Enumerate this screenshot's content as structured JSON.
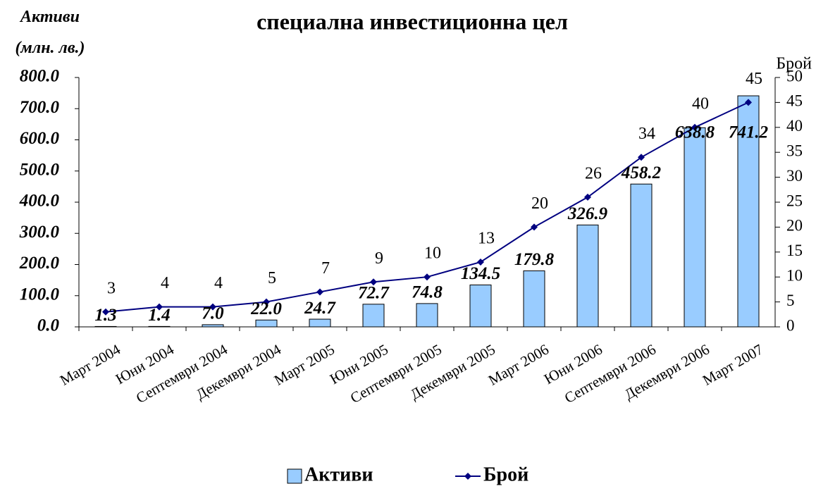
{
  "chart_data": {
    "type": "bar",
    "title": "специална инвестиционна цел",
    "ylabel": "Активи\n(млн. лв.)",
    "y2label": "Брой",
    "categories": [
      "Март 2004",
      "Юни 2004",
      "Септември 2004",
      "Декември 2004",
      "Март 2005",
      "Юни 2005",
      "Септември 2005",
      "Декември 2005",
      "Март 2006",
      "Юни 2006",
      "Септември 2006",
      "Декември 2006",
      "Март 2007"
    ],
    "series": [
      {
        "name": "Активи",
        "type": "bar",
        "color": "#99ccff",
        "values": [
          1.3,
          1.4,
          7.0,
          22.0,
          24.7,
          72.7,
          74.8,
          134.5,
          179.8,
          326.9,
          458.2,
          638.8,
          741.2
        ],
        "value_labels": [
          "1.3",
          "1.4",
          "7.0",
          "22.0",
          "24.7",
          "72.7",
          "74.8",
          "134.5",
          "179.8",
          "326.9",
          "458.2",
          "638.8",
          "741.2"
        ]
      },
      {
        "name": "Брой",
        "type": "line",
        "axis": "y2",
        "color": "#000080",
        "values": [
          3,
          4,
          4,
          5,
          7,
          9,
          10,
          13,
          20,
          26,
          34,
          40,
          45
        ]
      }
    ],
    "ylim": [
      0,
      800
    ],
    "yticks": [
      {
        "value": 0,
        "label": "0.0"
      },
      {
        "value": 100,
        "label": "100.0"
      },
      {
        "value": 200,
        "label": "200.0"
      },
      {
        "value": 300,
        "label": "300.0"
      },
      {
        "value": 400,
        "label": "400.0"
      },
      {
        "value": 500,
        "label": "500.0"
      },
      {
        "value": 600,
        "label": "600.0"
      },
      {
        "value": 700,
        "label": "700.0"
      },
      {
        "value": 800,
        "label": "800.0"
      }
    ],
    "y2lim": [
      0,
      50
    ],
    "y2ticks": [
      0,
      5,
      10,
      15,
      20,
      25,
      30,
      35,
      40,
      45,
      50
    ],
    "legend": "bottom"
  }
}
